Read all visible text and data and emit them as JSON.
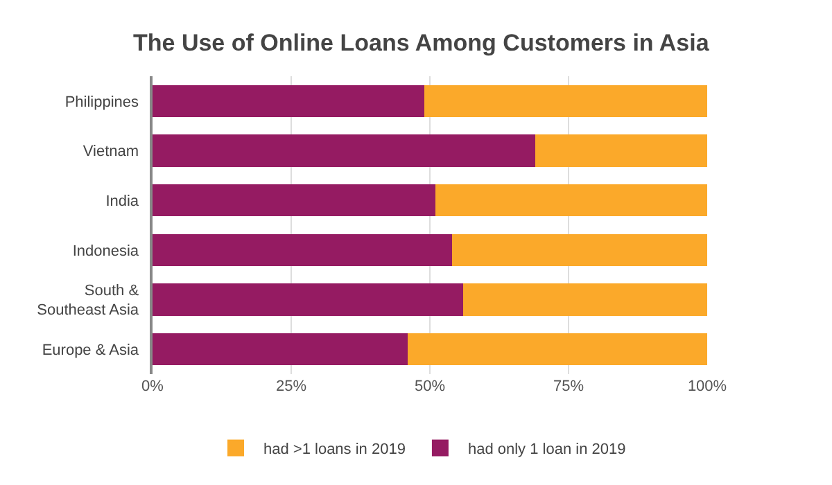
{
  "chart_data": {
    "type": "bar",
    "orientation": "horizontal",
    "stacked": true,
    "title": "The Use of Online Loans Among Customers in Asia",
    "categories": [
      "Philippines",
      "Vietnam",
      "India",
      "Indonesia",
      "South &\nSoutheast Asia",
      "Europe & Asia"
    ],
    "series": [
      {
        "name": "had only 1 loan in 2019",
        "color": "#951b62",
        "values": [
          49,
          69,
          51,
          54,
          56,
          46
        ]
      },
      {
        "name": "had >1 loans in 2019",
        "color": "#fba92a",
        "values": [
          51,
          31,
          49,
          46,
          44,
          54
        ]
      }
    ],
    "xlim": [
      0,
      100
    ],
    "xticks": [
      {
        "value": 0,
        "label": "0%"
      },
      {
        "value": 25,
        "label": "25%"
      },
      {
        "value": 50,
        "label": "50%"
      },
      {
        "value": 75,
        "label": "75%"
      },
      {
        "value": 100,
        "label": "100%"
      }
    ],
    "grid": "x",
    "legend": "bottom"
  }
}
